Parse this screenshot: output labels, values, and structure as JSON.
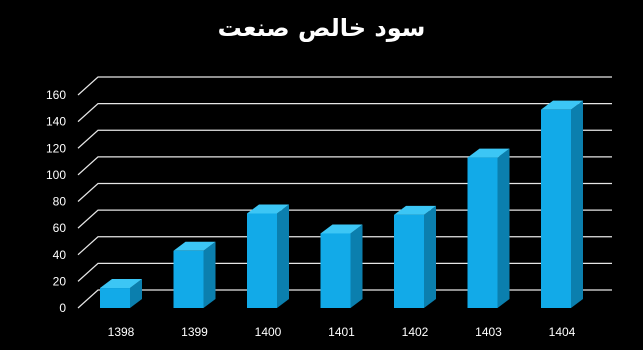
{
  "chart_data": {
    "type": "bar",
    "title": "سود خالص صنعت",
    "xlabel": "",
    "ylabel": "",
    "categories": [
      "1398",
      "1399",
      "1400",
      "1401",
      "1402",
      "1403",
      "1404"
    ],
    "values": [
      15,
      43,
      71,
      56,
      70,
      113,
      149
    ],
    "ylim": [
      0,
      160
    ],
    "yticks": [
      0,
      20,
      40,
      60,
      80,
      100,
      120,
      140,
      160
    ],
    "grid": true,
    "legend": "none",
    "bar_style": "3d",
    "colors": {
      "background": "#000000",
      "bar_front": "#12aae8",
      "bar_side": "#0b7fae",
      "bar_top": "#3cc6f5",
      "grid": "#e6e6e6",
      "text": "#ffffff"
    }
  }
}
